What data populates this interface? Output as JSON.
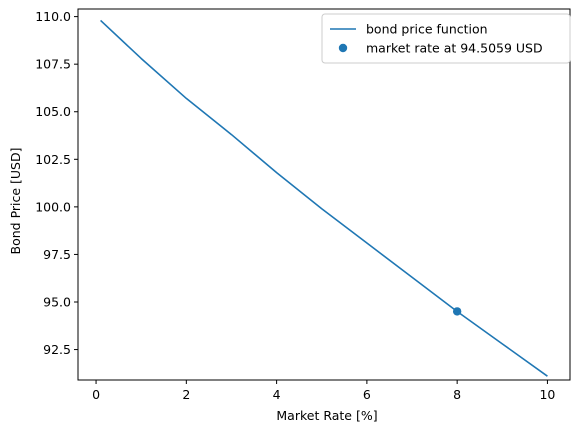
{
  "chart_data": {
    "type": "line",
    "title": "",
    "xlabel": "Market Rate [%]",
    "ylabel": "Bond Price [USD]",
    "xlim": [
      -0.4,
      10.5
    ],
    "ylim": [
      90.9,
      110.4
    ],
    "xticks": [
      0,
      2,
      4,
      6,
      8,
      10
    ],
    "xtick_labels": [
      "0",
      "2",
      "4",
      "6",
      "8",
      "10"
    ],
    "yticks": [
      92.5,
      95.0,
      97.5,
      100.0,
      102.5,
      105.0,
      107.5,
      110.0
    ],
    "ytick_labels": [
      "92.5",
      "95.0",
      "97.5",
      "100.0",
      "102.5",
      "105.0",
      "107.5",
      "110.0"
    ],
    "grid": false,
    "legend_position": "top-right",
    "series": [
      {
        "name": "bond price function",
        "kind": "line",
        "color": "#1f77b4",
        "x": [
          0.1,
          1,
          2,
          3,
          4,
          5,
          6,
          7,
          8,
          9,
          10
        ],
        "y": [
          109.8,
          107.8,
          105.7,
          103.8,
          101.8,
          99.9,
          98.1,
          96.3,
          94.5,
          92.8,
          91.1
        ]
      },
      {
        "name": "market rate at 94.5059 USD",
        "kind": "scatter",
        "color": "#1f77b4",
        "x": [
          8.0
        ],
        "y": [
          94.5059
        ]
      }
    ]
  }
}
